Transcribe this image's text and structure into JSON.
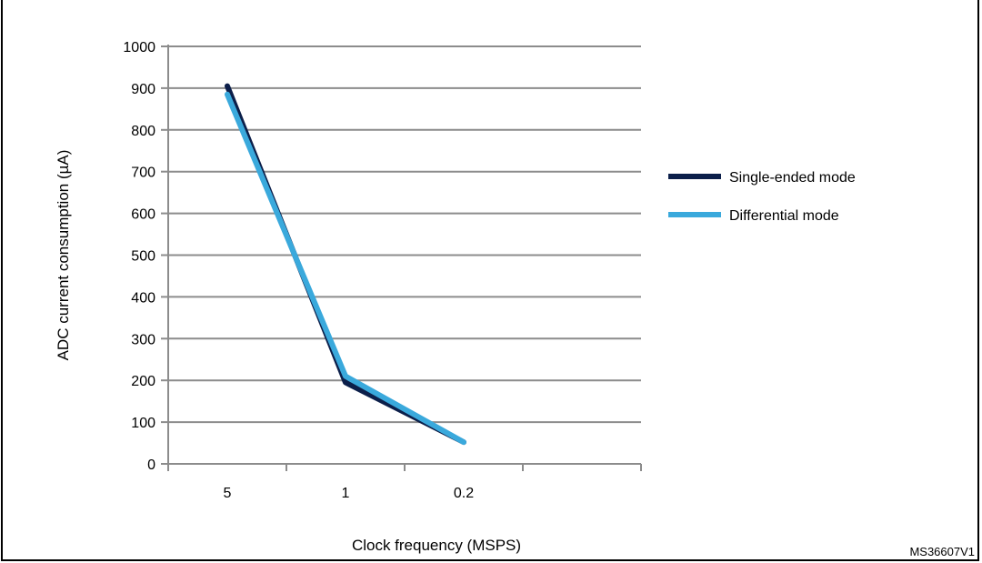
{
  "figure": {
    "reference": "MS36607V1"
  },
  "chart_data": {
    "type": "line",
    "categories": [
      "5",
      "1",
      "0.2"
    ],
    "xlabel": "Clock frequency (MSPS)",
    "ylabel": "ADC current consumption (µA)",
    "ylim": [
      0,
      1000
    ],
    "yticks": [
      0,
      100,
      200,
      300,
      400,
      500,
      600,
      700,
      800,
      900,
      1000
    ],
    "grid": true,
    "legend_position": "right",
    "series": [
      {
        "name": "Single-ended mode",
        "values": [
          905,
          195,
          52
        ],
        "color": "#0c1f4a"
      },
      {
        "name": "Differential mode",
        "values": [
          885,
          210,
          52
        ],
        "color": "#3aa9dc"
      }
    ]
  }
}
